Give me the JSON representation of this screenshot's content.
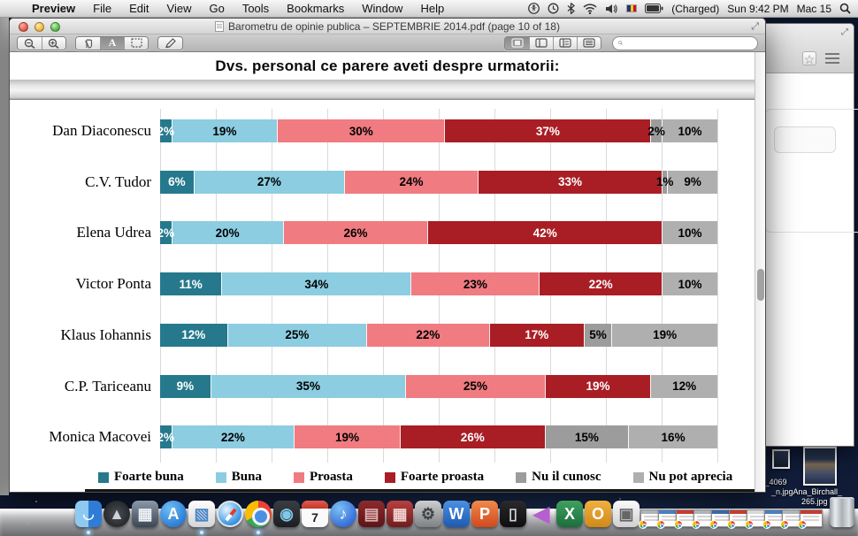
{
  "menu_bar": {
    "apple": "",
    "app_menus": [
      "Preview",
      "File",
      "Edit",
      "View",
      "Go",
      "Tools",
      "Bookmarks",
      "Window",
      "Help"
    ],
    "status": {
      "battery": "(Charged)",
      "clock": "Sun 9:42 PM",
      "user": "Mac 15"
    }
  },
  "preview_window": {
    "title": "Barometru de opinie publica – SEPTEMBRIE 2014.pdf (page 10 of 18)",
    "search": {
      "value": "",
      "placeholder": ""
    }
  },
  "chart_data": {
    "type": "bar",
    "variant": "horizontal-stacked",
    "title": "Dvs. personal ce parere aveti despre urmatorii:",
    "xlabel": "",
    "ylabel": "",
    "xlim": [
      0,
      100
    ],
    "grid": true,
    "value_suffix": "%",
    "legend_position": "bottom",
    "categories": [
      "Dan Diaconescu",
      "C.V. Tudor",
      "Elena Udrea",
      "Victor Ponta",
      "Klaus Iohannis",
      "C.P. Tariceanu",
      "Monica Macovei"
    ],
    "series": [
      {
        "name": "Foarte buna",
        "color": "#26798C",
        "text_color": "#ffffff",
        "values": [
          2,
          6,
          2,
          11,
          12,
          9,
          2
        ]
      },
      {
        "name": "Buna",
        "color": "#8CCDE1",
        "text_color": "#000000",
        "values": [
          19,
          27,
          20,
          34,
          25,
          35,
          22
        ]
      },
      {
        "name": "Proasta",
        "color": "#F07B81",
        "text_color": "#000000",
        "values": [
          30,
          24,
          26,
          23,
          22,
          25,
          19
        ]
      },
      {
        "name": "Foarte proasta",
        "color": "#A91E25",
        "text_color": "#ffffff",
        "values": [
          37,
          33,
          42,
          22,
          17,
          19,
          26
        ]
      },
      {
        "name": "Nu il cunosc",
        "color": "#9C9C9C",
        "text_color": "#000000",
        "values": [
          2,
          1,
          0,
          0,
          5,
          0,
          15
        ]
      },
      {
        "name": "Nu pot aprecia",
        "color": "#AFAFAF",
        "text_color": "#000000",
        "values": [
          10,
          9,
          10,
          10,
          19,
          12,
          16
        ]
      }
    ]
  },
  "desktop": {
    "file_labels": [
      "D_4069",
      "_n.jpgAna_Birchall_",
      "265.jpg"
    ]
  },
  "dock": {
    "apps": [
      {
        "name": "finder",
        "special": "finder",
        "glyph": "◡",
        "fg": "#ffffff",
        "bg": "",
        "shape": "rounded",
        "running": true
      },
      {
        "name": "launchpad",
        "glyph": "▲",
        "fg": "#cdd3d9",
        "bg": "radial-gradient(circle,#4a4f55,#17191c)",
        "shape": "circle"
      },
      {
        "name": "mission-control",
        "glyph": "▦",
        "fg": "#eef2f6",
        "bg": "linear-gradient(#8a98a8,#3c4654)",
        "shape": "rounded"
      },
      {
        "name": "app-store",
        "glyph": "A",
        "fg": "#ffffff",
        "bg": "radial-gradient(circle at 35% 30%,#6fbcf4,#1266c8)",
        "shape": "circle"
      },
      {
        "name": "preview",
        "glyph": "▧",
        "fg": "#4a86c8",
        "bg": "linear-gradient(#fdfdfd,#d5d5d5)",
        "shape": "rounded",
        "running": true
      },
      {
        "name": "safari",
        "special": "safari",
        "glyph": "",
        "fg": "",
        "bg": "",
        "shape": "circle"
      },
      {
        "name": "chrome",
        "special": "chrome",
        "glyph": "",
        "fg": "",
        "bg": "",
        "shape": "circle",
        "running": true
      },
      {
        "name": "photo-booth",
        "glyph": "◉",
        "fg": "#7fc8e8",
        "bg": "linear-gradient(#3a3d42,#1c1e22)",
        "shape": "rounded"
      },
      {
        "name": "calendar",
        "special": "calendar",
        "glyph": "7",
        "fg": "#222222",
        "bg": "",
        "shape": "rounded"
      },
      {
        "name": "itunes",
        "glyph": "♪",
        "fg": "#ffffff",
        "bg": "radial-gradient(circle at 35% 30%,#7cc0f2,#1a4fd0)",
        "shape": "circle"
      },
      {
        "name": "red-media-app",
        "glyph": "▤",
        "fg": "#e0b0b0",
        "bg": "linear-gradient(#8c2a2e,#5a1518)",
        "shape": "rounded"
      },
      {
        "name": "photos-grid-app",
        "glyph": "▦",
        "fg": "#f0d0d0",
        "bg": "linear-gradient(#b84040,#6e1c1c)",
        "shape": "rounded"
      },
      {
        "name": "system-preferences",
        "glyph": "⚙",
        "fg": "#3f4346",
        "bg": "linear-gradient(#cdced0,#7e8184)",
        "shape": "rounded"
      },
      {
        "name": "word",
        "glyph": "W",
        "fg": "#ffffff",
        "bg": "linear-gradient(#4a90e2,#1e5bb0)",
        "shape": "rounded"
      },
      {
        "name": "powerpoint",
        "glyph": "P",
        "fg": "#ffffff",
        "bg": "linear-gradient(#f08a4b,#d2491e)",
        "shape": "rounded"
      },
      {
        "name": "ipod",
        "glyph": "▯",
        "fg": "#cfd2d6",
        "bg": "linear-gradient(#2a2a2c,#0e0e10)",
        "shape": "rounded"
      },
      {
        "name": "audio-speaker",
        "glyph": "◀",
        "fg": "#b65fd0",
        "bg": "",
        "shape": "bare"
      },
      {
        "name": "excel",
        "glyph": "X",
        "fg": "#ffffff",
        "bg": "linear-gradient(#3fa060,#1c6e3c)",
        "shape": "rounded"
      },
      {
        "name": "outlook",
        "glyph": "O",
        "fg": "#ffffff",
        "bg": "linear-gradient(#f0b040,#d08a18)",
        "shape": "rounded"
      },
      {
        "name": "image-capture",
        "glyph": "▣",
        "fg": "#666666",
        "bg": "linear-gradient(#fafafa,#d0d0d0)",
        "shape": "rounded"
      }
    ],
    "minimized_windows": [
      {
        "accent": "#b0b4b8"
      },
      {
        "accent": "#4a7fbf"
      },
      {
        "accent": "#c43c30"
      },
      {
        "accent": "#b0b4b8"
      },
      {
        "accent": "#3a68a8"
      },
      {
        "accent": "#c43c30"
      },
      {
        "accent": "#d8d8d8"
      },
      {
        "accent": "#4a7fbf"
      },
      {
        "accent": "#b0b4b8"
      },
      {
        "accent": "#c43c30"
      }
    ]
  }
}
